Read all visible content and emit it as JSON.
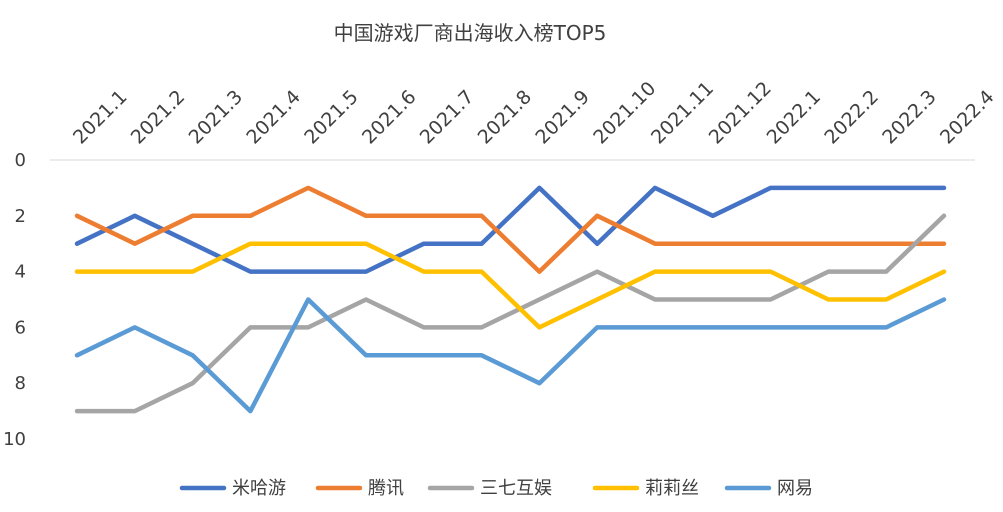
{
  "chart_data": {
    "type": "line",
    "title": "中国游戏厂商出海收入榜TOP5",
    "categories": [
      "2021.1",
      "2021.2",
      "2021.3",
      "2021.4",
      "2021.5",
      "2021.6",
      "2021.7",
      "2021.8",
      "2021.9",
      "2021.10",
      "2021.11",
      "2021.12",
      "2022.1",
      "2022.2",
      "2022.3",
      "2022.4"
    ],
    "y_ticks": [
      "0",
      "2",
      "4",
      "6",
      "8",
      "10"
    ],
    "ylim": [
      0,
      10
    ],
    "y_inverted": true,
    "x_axis_position": "top",
    "legend_position": "bottom",
    "series": [
      {
        "name": "米哈游",
        "color": "#4472C4",
        "values": [
          3,
          2,
          3,
          4,
          4,
          4,
          3,
          3,
          1,
          3,
          1,
          2,
          1,
          1,
          1,
          1
        ]
      },
      {
        "name": "腾讯",
        "color": "#ED7D31",
        "values": [
          2,
          3,
          2,
          2,
          1,
          2,
          2,
          2,
          4,
          2,
          3,
          3,
          3,
          3,
          3,
          3
        ]
      },
      {
        "name": "三七互娱",
        "color": "#A5A5A5",
        "values": [
          9,
          9,
          8,
          6,
          6,
          5,
          6,
          6,
          5,
          4,
          5,
          5,
          5,
          4,
          4,
          2
        ]
      },
      {
        "name": "莉莉丝",
        "color": "#FFC000",
        "values": [
          4,
          4,
          4,
          3,
          3,
          3,
          4,
          4,
          6,
          5,
          4,
          4,
          4,
          5,
          5,
          4
        ]
      },
      {
        "name": "网易",
        "color": "#5B9BD5",
        "values": [
          7,
          6,
          7,
          9,
          5,
          7,
          7,
          7,
          8,
          6,
          6,
          6,
          6,
          6,
          6,
          5
        ]
      }
    ]
  }
}
